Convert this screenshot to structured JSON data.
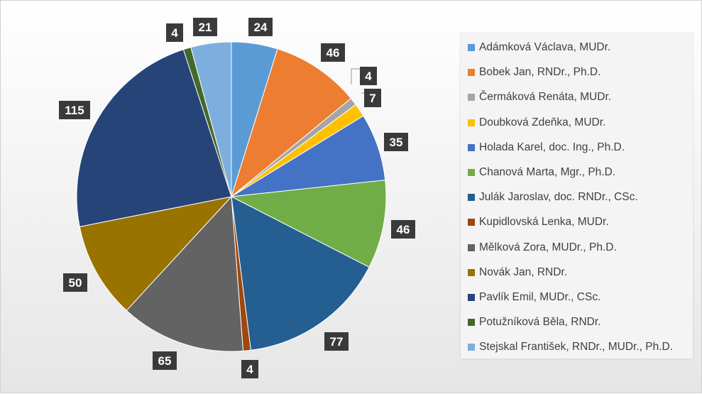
{
  "chart_data": {
    "type": "pie",
    "title": "",
    "legend_position": "right",
    "series": [
      {
        "name": "Adámková Václava, MUDr.",
        "value": 24,
        "color": "#5B9BD5"
      },
      {
        "name": "Bobek Jan, RNDr., Ph.D.",
        "value": 46,
        "color": "#ED7D31"
      },
      {
        "name": "Čermáková Renáta, MUDr.",
        "value": 4,
        "color": "#A5A5A5"
      },
      {
        "name": "Doubková Zdeňka, MUDr.",
        "value": 7,
        "color": "#FFC000"
      },
      {
        "name": "Holada Karel, doc. Ing., Ph.D.",
        "value": 35,
        "color": "#4472C4"
      },
      {
        "name": "Chanová Marta, Mgr., Ph.D.",
        "value": 46,
        "color": "#70AD47"
      },
      {
        "name": "Julák Jaroslav, doc. RNDr., CSc.",
        "value": 77,
        "color": "#255E91"
      },
      {
        "name": "Kupidlovská Lenka, MUDr.",
        "value": 4,
        "color": "#9E480E"
      },
      {
        "name": "Mělková Zora, MUDr., Ph.D.",
        "value": 65,
        "color": "#636363"
      },
      {
        "name": "Novák Jan, RNDr.",
        "value": 50,
        "color": "#997300"
      },
      {
        "name": "Pavlík Emil, MUDr., CSc.",
        "value": 115,
        "color": "#264478"
      },
      {
        "name": "Potužníková Běla, RNDr.",
        "value": 4,
        "color": "#43682B"
      },
      {
        "name": "Stejskal František, RNDr., MUDr., Ph.D.",
        "value": 21,
        "color": "#7CAFDD"
      }
    ]
  }
}
